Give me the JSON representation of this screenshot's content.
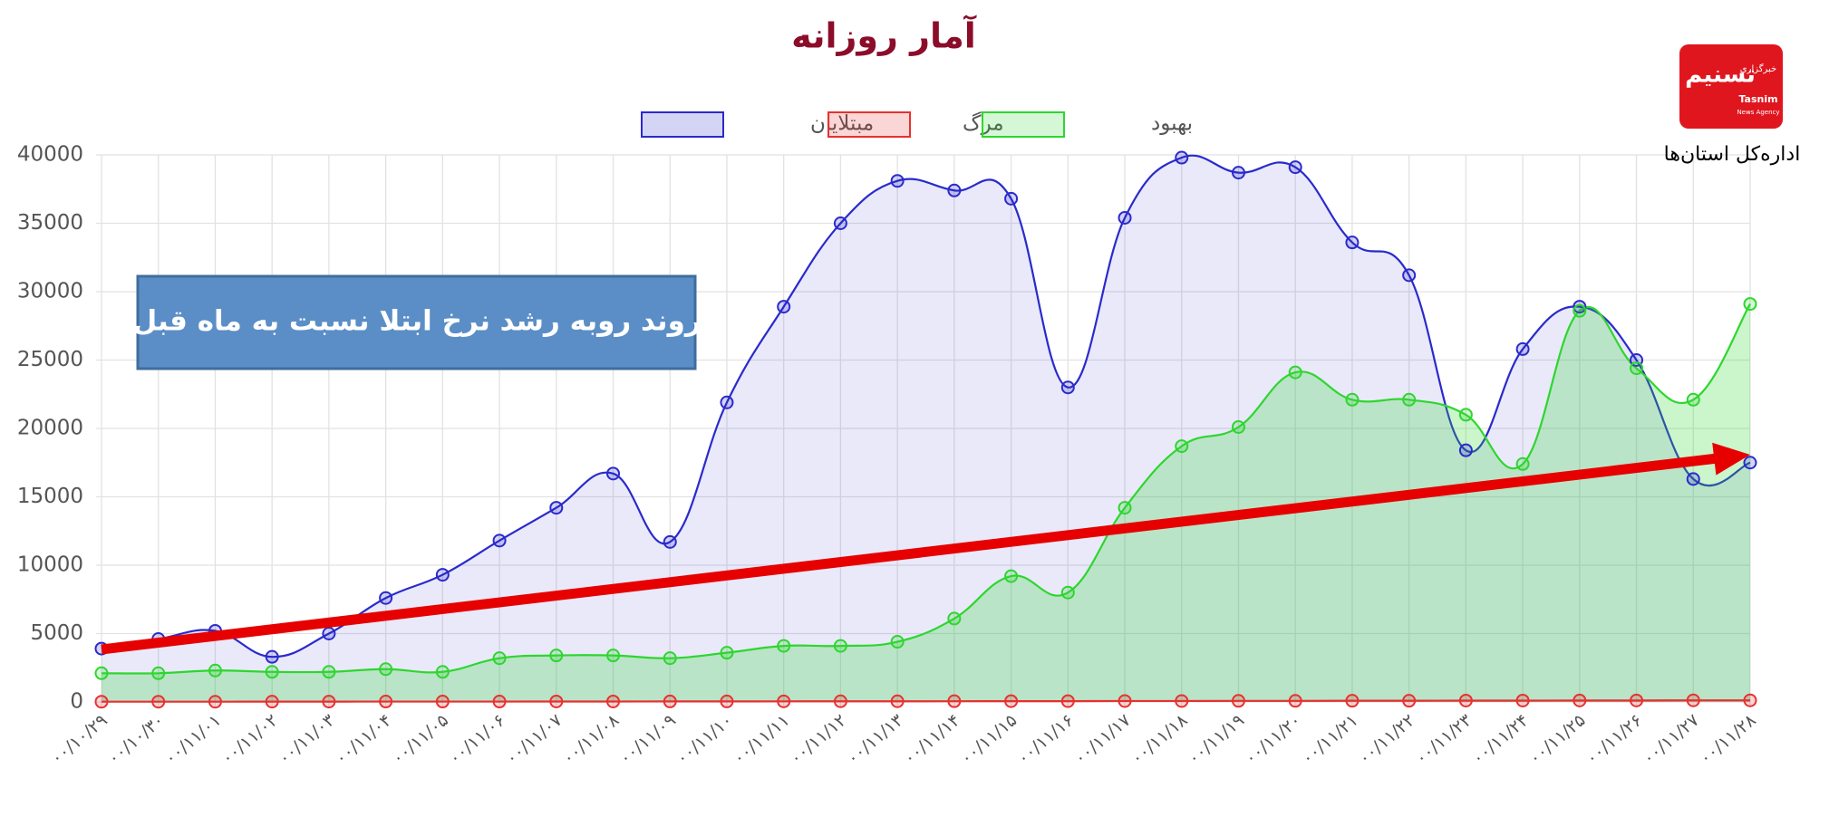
{
  "chart_data": {
    "type": "line",
    "title": "آمار روزانه",
    "annotation": "روند روبه رشد نرخ ابتلا نسبت به ماه قبل",
    "categories": [
      "۰۰/۱۰/۲۹",
      "۰۰/۱۰/۳۰",
      "۰۰/۱۱/۰۱",
      "۰۰/۱۱/۰۲",
      "۰۰/۱۱/۰۳",
      "۰۰/۱۱/۰۴",
      "۰۰/۱۱/۰۵",
      "۰۰/۱۱/۰۶",
      "۰۰/۱۱/۰۷",
      "۰۰/۱۱/۰۸",
      "۰۰/۱۱/۰۹",
      "۰۰/۱۱/۱۰",
      "۰۰/۱۱/۱۱",
      "۰۰/۱۱/۱۲",
      "۰۰/۱۱/۱۳",
      "۰۰/۱۱/۱۴",
      "۰۰/۱۱/۱۵",
      "۰۰/۱۱/۱۶",
      "۰۰/۱۱/۱۷",
      "۰۰/۱۱/۱۸",
      "۰۰/۱۱/۱۹",
      "۰۰/۱۱/۲۰",
      "۰۰/۱۱/۲۱",
      "۰۰/۱۱/۲۲",
      "۰۰/۱۱/۲۳",
      "۰۰/۱۱/۲۴",
      "۰۰/۱۱/۲۵",
      "۰۰/۱۱/۲۶",
      "۰۰/۱۱/۲۷",
      "۰۰/۱۱/۲۸"
    ],
    "series": [
      {
        "name": "مبتلایان",
        "color": "#2a2acc",
        "values": [
          3900,
          4600,
          5200,
          3300,
          5000,
          7600,
          9300,
          11800,
          14200,
          16700,
          11700,
          21900,
          28900,
          35000,
          38100,
          37400,
          36800,
          23000,
          35400,
          39800,
          38700,
          39100,
          33600,
          31200,
          18400,
          25800,
          28900,
          25000,
          16300,
          17500
        ]
      },
      {
        "name": "مرگ",
        "color": "#e83030",
        "values": [
          20,
          20,
          20,
          25,
          25,
          30,
          30,
          30,
          35,
          35,
          40,
          40,
          45,
          50,
          50,
          55,
          60,
          60,
          70,
          70,
          80,
          80,
          90,
          90,
          100,
          100,
          110,
          110,
          120,
          120
        ]
      },
      {
        "name": "بهبود",
        "color": "#2ed62e",
        "values": [
          2100,
          2100,
          2300,
          2200,
          2200,
          2400,
          2200,
          3200,
          3400,
          3400,
          3200,
          3600,
          4100,
          4100,
          4400,
          6100,
          9200,
          8000,
          14200,
          18700,
          20100,
          24100,
          22100,
          22100,
          21000,
          17400,
          28600,
          24400,
          22100,
          29100
        ]
      }
    ],
    "ylim": [
      0,
      40000
    ],
    "yticks": [
      0,
      5000,
      10000,
      15000,
      20000,
      25000,
      30000,
      35000,
      40000
    ],
    "grid": true
  },
  "logo": {
    "name": "تسنیم",
    "agency": "خبرگزاری",
    "latin": "Tasnim",
    "latin_sub": "News Agency",
    "caption": "اداره‌کل استان‌ها"
  }
}
